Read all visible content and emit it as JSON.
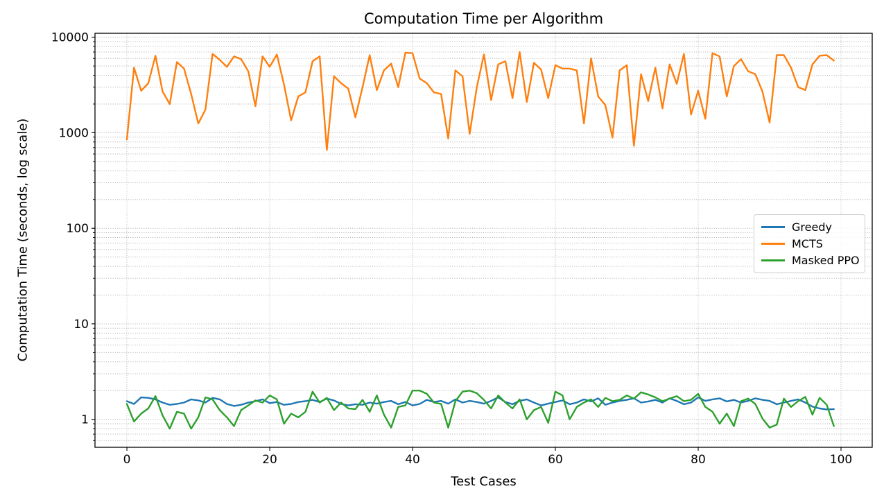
{
  "figure": {
    "background": "#ffffff",
    "plot_border_color": "#000000",
    "grid_color": "#b0b0b0"
  },
  "chart_data": {
    "type": "line",
    "title": "Computation Time per Algorithm",
    "xlabel": "Test Cases",
    "ylabel": "Computation Time (seconds, log scale)",
    "y_scale": "log",
    "xlim": [
      -4.47,
      104.37
    ],
    "ylim": [
      0.51,
      11000
    ],
    "x_ticks": [
      0,
      20,
      40,
      60,
      80,
      100
    ],
    "y_ticks": [
      1,
      10,
      100,
      1000,
      10000
    ],
    "grid": {
      "horizontal": "major+minor",
      "vertical": "major",
      "style": "dotted"
    },
    "legend": {
      "location": "center right",
      "entries": [
        "Greedy",
        "MCTS",
        "Masked PPO"
      ]
    },
    "x": [
      0,
      1,
      2,
      3,
      4,
      5,
      6,
      7,
      8,
      9,
      10,
      11,
      12,
      13,
      14,
      15,
      16,
      17,
      18,
      19,
      20,
      21,
      22,
      23,
      24,
      25,
      26,
      27,
      28,
      29,
      30,
      31,
      32,
      33,
      34,
      35,
      36,
      37,
      38,
      39,
      40,
      41,
      42,
      43,
      44,
      45,
      46,
      47,
      48,
      49,
      50,
      51,
      52,
      53,
      54,
      55,
      56,
      57,
      58,
      59,
      60,
      61,
      62,
      63,
      64,
      65,
      66,
      67,
      68,
      69,
      70,
      71,
      72,
      73,
      74,
      75,
      76,
      77,
      78,
      79,
      80,
      81,
      82,
      83,
      84,
      85,
      86,
      87,
      88,
      89,
      90,
      91,
      92,
      93,
      94,
      95,
      96,
      97,
      98,
      99
    ],
    "series": [
      {
        "name": "Greedy",
        "color": "#1f77b4",
        "values": [
          1.55,
          1.45,
          1.7,
          1.68,
          1.62,
          1.5,
          1.42,
          1.45,
          1.5,
          1.62,
          1.58,
          1.5,
          1.68,
          1.62,
          1.45,
          1.38,
          1.42,
          1.5,
          1.55,
          1.62,
          1.48,
          1.52,
          1.42,
          1.45,
          1.52,
          1.55,
          1.6,
          1.52,
          1.65,
          1.58,
          1.45,
          1.4,
          1.44,
          1.42,
          1.5,
          1.46,
          1.52,
          1.56,
          1.44,
          1.52,
          1.4,
          1.45,
          1.6,
          1.52,
          1.56,
          1.46,
          1.62,
          1.5,
          1.56,
          1.52,
          1.46,
          1.56,
          1.7,
          1.52,
          1.44,
          1.56,
          1.62,
          1.5,
          1.4,
          1.46,
          1.52,
          1.58,
          1.44,
          1.5,
          1.62,
          1.54,
          1.66,
          1.42,
          1.5,
          1.56,
          1.6,
          1.66,
          1.5,
          1.54,
          1.6,
          1.5,
          1.66,
          1.56,
          1.44,
          1.5,
          1.7,
          1.56,
          1.62,
          1.66,
          1.54,
          1.6,
          1.5,
          1.56,
          1.66,
          1.6,
          1.56,
          1.44,
          1.5,
          1.56,
          1.62,
          1.5,
          1.36,
          1.3,
          1.27,
          1.28
        ]
      },
      {
        "name": "MCTS",
        "color": "#ff7f0e",
        "values": [
          850,
          4800,
          2750,
          3300,
          6400,
          2700,
          2000,
          5500,
          4700,
          2550,
          1250,
          1750,
          6700,
          5800,
          4900,
          6300,
          5900,
          4400,
          1900,
          6300,
          4900,
          6600,
          3200,
          1350,
          2400,
          2650,
          5600,
          6300,
          660,
          3900,
          3300,
          2900,
          1450,
          3000,
          6500,
          2800,
          4500,
          5300,
          3000,
          6900,
          6800,
          3700,
          3300,
          2650,
          2550,
          870,
          4500,
          3900,
          975,
          3000,
          6600,
          2200,
          5200,
          5600,
          2300,
          7000,
          2100,
          5400,
          4600,
          2300,
          5100,
          4700,
          4700,
          4500,
          1250,
          6000,
          2400,
          1950,
          890,
          4500,
          5100,
          730,
          4100,
          2150,
          4800,
          1800,
          5200,
          3250,
          6700,
          1550,
          2750,
          1400,
          6800,
          6300,
          2400,
          5000,
          5900,
          4400,
          4100,
          2700,
          1280,
          6500,
          6500,
          4800,
          3000,
          2800,
          5200,
          6400,
          6500,
          5700
        ]
      },
      {
        "name": "Masked PPO",
        "color": "#2ca02c",
        "values": [
          1.45,
          0.95,
          1.15,
          1.3,
          1.75,
          1.1,
          0.8,
          1.2,
          1.15,
          0.8,
          1.05,
          1.7,
          1.62,
          1.25,
          1.05,
          0.85,
          1.25,
          1.4,
          1.58,
          1.5,
          1.78,
          1.62,
          0.9,
          1.15,
          1.05,
          1.2,
          1.95,
          1.5,
          1.68,
          1.25,
          1.5,
          1.3,
          1.28,
          1.6,
          1.2,
          1.78,
          1.12,
          0.82,
          1.35,
          1.4,
          2.0,
          2.0,
          1.85,
          1.5,
          1.45,
          0.82,
          1.55,
          1.95,
          2.0,
          1.88,
          1.6,
          1.3,
          1.78,
          1.5,
          1.3,
          1.62,
          1.0,
          1.25,
          1.35,
          0.92,
          1.95,
          1.78,
          1.0,
          1.35,
          1.5,
          1.62,
          1.35,
          1.68,
          1.55,
          1.6,
          1.78,
          1.65,
          1.92,
          1.82,
          1.7,
          1.55,
          1.65,
          1.75,
          1.55,
          1.6,
          1.85,
          1.35,
          1.2,
          0.9,
          1.15,
          0.85,
          1.55,
          1.65,
          1.45,
          1.02,
          0.82,
          0.88,
          1.65,
          1.35,
          1.55,
          1.72,
          1.12,
          1.68,
          1.42,
          0.85
        ]
      }
    ]
  }
}
